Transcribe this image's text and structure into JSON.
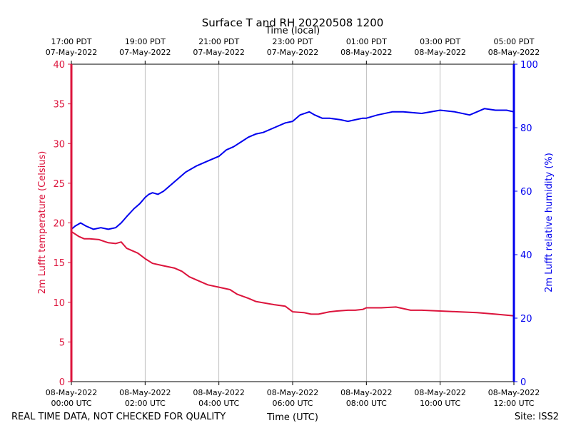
{
  "chart_data": {
    "type": "line",
    "title": "Surface T and RH 20220508 1200",
    "top_axis_label": "Time (local)",
    "xlabel": "Time (UTC)",
    "ylabel_left": "2m Lufft temperature (Celsius)",
    "ylabel_right": "2m Lufft relative humidity (%)",
    "footer_left": "REAL TIME DATA, NOT CHECKED FOR QUALITY",
    "footer_right": "Site: ISS2",
    "x_range_hours": [
      0,
      12
    ],
    "x_ticks_hours": [
      0,
      2,
      4,
      6,
      8,
      10,
      12
    ],
    "x_tick_labels_utc": [
      [
        "08-May-2022",
        "00:00 UTC"
      ],
      [
        "08-May-2022",
        "02:00 UTC"
      ],
      [
        "08-May-2022",
        "04:00 UTC"
      ],
      [
        "08-May-2022",
        "06:00 UTC"
      ],
      [
        "08-May-2022",
        "08:00 UTC"
      ],
      [
        "08-May-2022",
        "10:00 UTC"
      ],
      [
        "08-May-2022",
        "12:00 UTC"
      ]
    ],
    "x_tick_labels_local": [
      [
        "17:00 PDT",
        "07-May-2022"
      ],
      [
        "19:00 PDT",
        "07-May-2022"
      ],
      [
        "21:00 PDT",
        "07-May-2022"
      ],
      [
        "23:00 PDT",
        "07-May-2022"
      ],
      [
        "01:00 PDT",
        "08-May-2022"
      ],
      [
        "03:00 PDT",
        "08-May-2022"
      ],
      [
        "05:00 PDT",
        "08-May-2022"
      ]
    ],
    "ylim_left": [
      0,
      40
    ],
    "yticks_left": [
      0,
      5,
      10,
      15,
      20,
      25,
      30,
      35,
      40
    ],
    "ylim_right": [
      0,
      100
    ],
    "yticks_right": [
      0,
      20,
      40,
      60,
      80,
      100
    ],
    "grid": "vertical",
    "colors": {
      "temperature": "#dc143c",
      "humidity": "#0000ee",
      "grid": "#b0b0b0",
      "axis": "#000000"
    },
    "series": [
      {
        "name": "Temperature",
        "axis": "left",
        "x_hours": [
          0.0,
          0.1,
          0.2,
          0.35,
          0.5,
          0.75,
          1.0,
          1.2,
          1.35,
          1.5,
          1.8,
          2.0,
          2.2,
          2.5,
          2.8,
          3.0,
          3.2,
          3.5,
          3.7,
          4.0,
          4.3,
          4.5,
          4.8,
          5.0,
          5.5,
          5.8,
          6.0,
          6.3,
          6.5,
          6.7,
          7.0,
          7.2,
          7.5,
          7.7,
          7.9,
          8.0,
          8.4,
          8.8,
          9.2,
          9.5,
          10.0,
          10.5,
          11.0,
          11.5,
          12.0
        ],
        "values": [
          18.9,
          18.6,
          18.3,
          18.0,
          18.0,
          17.9,
          17.5,
          17.4,
          17.6,
          16.8,
          16.2,
          15.5,
          14.9,
          14.6,
          14.3,
          13.9,
          13.2,
          12.6,
          12.2,
          11.9,
          11.6,
          11.0,
          10.5,
          10.1,
          9.7,
          9.5,
          8.8,
          8.7,
          8.5,
          8.5,
          8.8,
          8.9,
          9.0,
          9.0,
          9.1,
          9.3,
          9.3,
          9.4,
          9.0,
          9.0,
          8.9,
          8.8,
          8.7,
          8.5,
          8.3
        ]
      },
      {
        "name": "Relative humidity",
        "axis": "right",
        "x_hours": [
          0.0,
          0.1,
          0.25,
          0.4,
          0.6,
          0.8,
          1.0,
          1.2,
          1.35,
          1.5,
          1.7,
          1.85,
          2.0,
          2.1,
          2.2,
          2.35,
          2.5,
          2.7,
          2.9,
          3.1,
          3.4,
          3.7,
          4.0,
          4.2,
          4.4,
          4.6,
          4.8,
          5.0,
          5.2,
          5.5,
          5.8,
          6.0,
          6.2,
          6.45,
          6.6,
          6.8,
          7.0,
          7.3,
          7.5,
          7.7,
          7.9,
          8.0,
          8.3,
          8.7,
          9.0,
          9.5,
          10.0,
          10.4,
          10.8,
          11.0,
          11.2,
          11.5,
          11.8,
          12.0
        ],
        "values": [
          48.0,
          49.0,
          50.0,
          49.0,
          48.0,
          48.5,
          48.0,
          48.5,
          50.0,
          52.0,
          54.5,
          56.0,
          58.0,
          59.0,
          59.5,
          59.0,
          60.0,
          62.0,
          64.0,
          66.0,
          68.0,
          69.5,
          71.0,
          73.0,
          74.0,
          75.5,
          77.0,
          78.0,
          78.5,
          80.0,
          81.5,
          82.0,
          84.0,
          85.0,
          84.0,
          83.0,
          83.0,
          82.5,
          82.0,
          82.5,
          83.0,
          83.0,
          84.0,
          85.0,
          85.0,
          84.5,
          85.5,
          85.0,
          84.0,
          85.0,
          86.0,
          85.5,
          85.5,
          85.0
        ]
      }
    ]
  }
}
